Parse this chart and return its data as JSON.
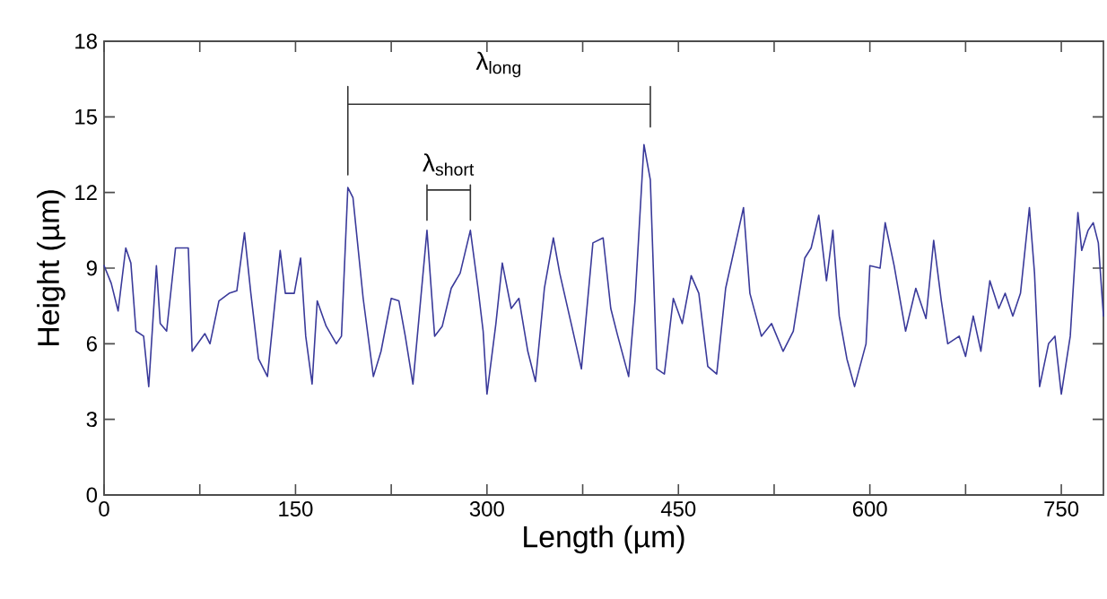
{
  "chart_data": {
    "type": "line",
    "xlabel": "Length (µm)",
    "ylabel": "Height (µm)",
    "xlim": [
      0,
      783
    ],
    "ylim": [
      0,
      18
    ],
    "xticks": [
      0,
      {
        "value": 75,
        "label": null
      },
      150,
      {
        "value": 225,
        "label": null
      },
      300,
      {
        "value": 375,
        "label": null
      },
      450,
      {
        "value": 525,
        "label": null
      },
      600,
      {
        "value": 675,
        "label": null
      },
      750
    ],
    "yticks": [
      0,
      3,
      6,
      9,
      12,
      15,
      18
    ],
    "grid": false,
    "legend": false,
    "marker": "none",
    "line_style": "solid",
    "annotations": [
      "λ$_{long}$",
      "λ$_{short}$"
    ],
    "series": [
      {
        "color": "#3a3a9a",
        "x": [
          0,
          5.6,
          11,
          17,
          21,
          25,
          31,
          35,
          41,
          44,
          49,
          56,
          66,
          69,
          79,
          83,
          90,
          98,
          104,
          110,
          115,
          121,
          128,
          138,
          142,
          149,
          154,
          158,
          163,
          167,
          174,
          182,
          186,
          191,
          195,
          203,
          211,
          217,
          225,
          231,
          236,
          242,
          253,
          259,
          265,
          272,
          279,
          287,
          293,
          297,
          300,
          307,
          312,
          319,
          325,
          332,
          338,
          345,
          352,
          357,
          366,
          374,
          383,
          391,
          397,
          402,
          411,
          416,
          423,
          428,
          433,
          439,
          446,
          453,
          460,
          466,
          473,
          480,
          487,
          501,
          506,
          515,
          523,
          532,
          540,
          549,
          554,
          560,
          566,
          571,
          576,
          582,
          588,
          597,
          600,
          608,
          612,
          619,
          628,
          636,
          644,
          650,
          656,
          661,
          670,
          675,
          681,
          687,
          694,
          701,
          706,
          712,
          718,
          725,
          729,
          733,
          740,
          745,
          750,
          757,
          763,
          766,
          771,
          775,
          779,
          783
        ],
        "values": [
          9.1,
          8.4,
          7.3,
          9.8,
          9.2,
          6.5,
          6.3,
          4.3,
          9.1,
          6.8,
          6.5,
          9.8,
          9.8,
          5.7,
          6.4,
          6.0,
          7.7,
          8.0,
          8.1,
          10.4,
          8.0,
          5.4,
          4.7,
          9.7,
          8.0,
          8.0,
          9.4,
          6.3,
          4.4,
          7.7,
          6.7,
          6.0,
          6.3,
          12.2,
          11.8,
          7.8,
          4.7,
          5.7,
          7.8,
          7.7,
          6.3,
          4.4,
          10.5,
          6.3,
          6.7,
          8.2,
          8.8,
          10.5,
          8.2,
          6.5,
          4.0,
          6.8,
          9.2,
          7.4,
          7.8,
          5.7,
          4.5,
          8.2,
          10.2,
          8.8,
          6.8,
          5.0,
          10.0,
          10.2,
          7.4,
          6.4,
          4.7,
          7.7,
          13.9,
          12.5,
          5.0,
          4.8,
          7.8,
          6.8,
          8.7,
          8.0,
          5.1,
          4.8,
          8.2,
          11.4,
          8.0,
          6.3,
          6.8,
          5.7,
          6.5,
          9.4,
          9.8,
          11.1,
          8.5,
          10.5,
          7.1,
          5.4,
          4.3,
          6.0,
          9.1,
          9.0,
          10.8,
          9.1,
          6.5,
          8.2,
          7.0,
          10.1,
          7.7,
          6.0,
          6.3,
          5.5,
          7.1,
          5.7,
          8.5,
          7.4,
          8.0,
          7.1,
          8.0,
          11.4,
          8.8,
          4.3,
          6.0,
          6.3,
          4.0,
          6.3,
          11.2,
          9.7,
          10.5,
          10.8,
          10.0,
          7.1
        ]
      },
      {
        "color": "#333333",
        "x": [
          191,
          191,
          191,
          428,
          428,
          428
        ],
        "values": [
          16.2,
          12.7,
          15.5,
          15.5,
          14.6,
          16.2
        ]
      },
      {
        "color": "#333333",
        "x": [
          253,
          253,
          253,
          287,
          287,
          287
        ],
        "values": [
          12.3,
          10.9,
          12.1,
          12.1,
          10.9,
          12.3
        ]
      }
    ]
  }
}
